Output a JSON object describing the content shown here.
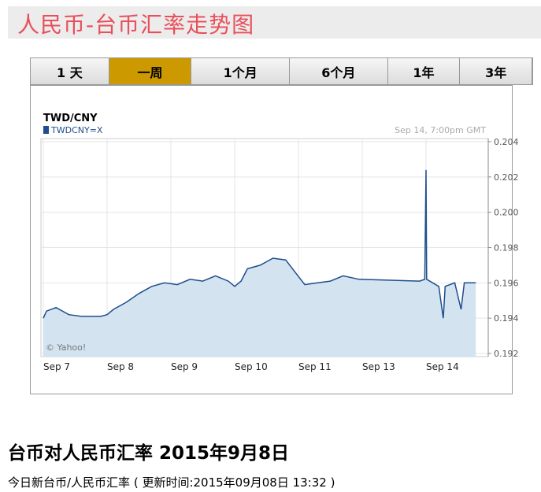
{
  "header": {
    "title": "人民币-台币汇率走势图"
  },
  "tabs": [
    "1 天",
    "一周",
    "1个月",
    "6个月",
    "1年",
    "3年"
  ],
  "active_tab": 1,
  "chart_data": {
    "type": "line",
    "title": "TWD/CNY",
    "timestamp": "Sep 14, 7:00pm GMT",
    "credit": "© Yahoo!",
    "x": [
      0,
      0.05,
      0.2,
      0.4,
      0.6,
      0.9,
      1.0,
      1.1,
      1.3,
      1.5,
      1.7,
      1.9,
      2.1,
      2.3,
      2.5,
      2.7,
      2.9,
      3.0,
      3.1,
      3.2,
      3.4,
      3.6,
      3.8,
      3.95,
      4.1,
      4.3,
      4.5,
      4.7,
      4.95,
      5.9,
      5.98,
      6.0,
      6.01,
      6.2,
      6.27,
      6.3,
      6.45,
      6.55,
      6.6,
      6.78
    ],
    "series": [
      {
        "name": "TWDCNY=X",
        "color": "#1f4e8c",
        "values": [
          0.194,
          0.1944,
          0.1946,
          0.1942,
          0.1941,
          0.1941,
          0.1942,
          0.1945,
          0.1949,
          0.1954,
          0.1958,
          0.196,
          0.1959,
          0.1962,
          0.1961,
          0.1964,
          0.1961,
          0.1958,
          0.1961,
          0.1968,
          0.197,
          0.1974,
          0.1973,
          0.1966,
          0.1959,
          0.196,
          0.1961,
          0.1964,
          0.1962,
          0.1961,
          0.1962,
          0.2024,
          0.1962,
          0.1958,
          0.194,
          0.1958,
          0.196,
          0.1945,
          0.196,
          0.196
        ]
      }
    ],
    "xlim": [
      0,
      7
    ],
    "xticks": [
      {
        "value": 0,
        "label": "Sep 7"
      },
      {
        "value": 1,
        "label": "Sep 8"
      },
      {
        "value": 2,
        "label": "Sep 9"
      },
      {
        "value": 3,
        "label": "Sep 10"
      },
      {
        "value": 4,
        "label": "Sep 11"
      },
      {
        "value": 5,
        "label": "Sep 13"
      },
      {
        "value": 6,
        "label": "Sep 14"
      }
    ],
    "ylim": [
      0.192,
      0.204
    ],
    "yticks": [
      0.192,
      0.194,
      0.196,
      0.198,
      {
        "value": 0.2,
        "label": "0.200"
      },
      0.202,
      0.204
    ],
    "grid": true,
    "area_color": "#d3e3ef"
  },
  "section": {
    "heading": "台币对人民币汇率 2015年9月8日",
    "subtitle": "今日新台币/人民币汇率 ( 更新时间:2015年09月08日 13:32 )"
  }
}
